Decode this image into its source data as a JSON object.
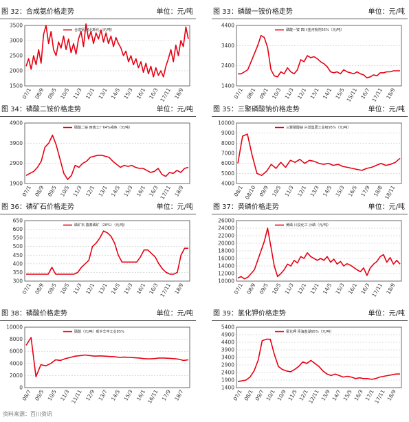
{
  "source": "资料来源：百川资讯",
  "chart_data": [
    {
      "type": "line",
      "title": "图 32：合成氨价格走势",
      "unit_label": "单位：元/吨",
      "legend": "合成氨 河北新化（元/吨）",
      "series_color": "#e60012",
      "ylim": [
        1500,
        3500
      ],
      "yticks": [
        1500,
        2000,
        2500,
        3000,
        3500
      ],
      "xticks": [
        "07/1",
        "08/9",
        "09/5",
        "10/5",
        "11/3",
        "12/1",
        "13/1",
        "14/5",
        "15/3",
        "16/1",
        "16/3",
        "17/11",
        "18/9"
      ],
      "values": [
        2150,
        2400,
        2050,
        2500,
        2200,
        2700,
        2250,
        3200,
        3500,
        2900,
        3300,
        2700,
        2500,
        2950,
        2750,
        3150,
        2700,
        3050,
        2600,
        2900,
        2550,
        3050,
        3300,
        2800,
        3550,
        3050,
        3300,
        2900,
        3250,
        3050,
        3350,
        2950,
        3250,
        2900,
        3150,
        2800,
        3100,
        2900,
        2750,
        2500,
        2650,
        2300,
        2500,
        2200,
        2400,
        2100,
        2300,
        1950,
        2250,
        1900,
        2150,
        1800,
        2100,
        1850,
        2000,
        1800,
        2150,
        2400,
        2700,
        2300,
        2850,
        2500,
        3000,
        2800,
        3450,
        3050
      ]
    },
    {
      "type": "line",
      "title": "图 33：磷酸一铵价格走势",
      "unit_label": "单位：元/吨",
      "legend": "磷酸一铵 四川金河粉剂55%（元/吨）",
      "series_color": "#e60012",
      "ylim": [
        1400,
        4400
      ],
      "yticks": [
        1400,
        2400,
        3400,
        4400
      ],
      "xticks": [
        "07/1",
        "08/1",
        "09/1",
        "10/3",
        "11/3",
        "12/1",
        "13/1",
        "14/1",
        "15/5",
        "15/11",
        "16/7",
        "17/11",
        "18/9"
      ],
      "values": [
        2000,
        2000,
        2100,
        2200,
        2600,
        3000,
        3400,
        3900,
        3800,
        3300,
        2200,
        1900,
        1850,
        2100,
        2000,
        2300,
        2100,
        2000,
        2200,
        2700,
        2600,
        2900,
        2800,
        2850,
        2750,
        2600,
        2500,
        2350,
        2100,
        2050,
        2100,
        2000,
        2200,
        2100,
        2050,
        2000,
        2100,
        2000,
        1950,
        1800,
        1850,
        1950,
        1900,
        2050,
        2050,
        2100,
        2100,
        2150,
        2150,
        2150
      ]
    },
    {
      "type": "line",
      "title": "图 34：磷酸二铵价格走势",
      "unit_label": "单位：元/吨",
      "legend": "磷酸二铵 西南工厂64%褐色（元/吨）",
      "series_color": "#e60012",
      "ylim": [
        1900,
        4900
      ],
      "yticks": [
        1900,
        2900,
        3900,
        4900
      ],
      "xticks": [
        "07/1",
        "08/9",
        "09/5",
        "10/5",
        "11/3",
        "12/1",
        "13/1",
        "14/5",
        "15/3",
        "16/1",
        "16/3",
        "17/11",
        "18/9"
      ],
      "values": [
        2300,
        2400,
        2500,
        2700,
        3000,
        3700,
        3900,
        4300,
        3800,
        3100,
        2400,
        2100,
        2300,
        2800,
        2700,
        2900,
        3000,
        3200,
        3250,
        3300,
        3300,
        3250,
        3200,
        3000,
        2850,
        2700,
        2800,
        2750,
        2800,
        2700,
        2650,
        2650,
        2550,
        2450,
        2500,
        2650,
        2350,
        2250,
        2450,
        2400,
        2550,
        2450,
        2650,
        2700
      ]
    },
    {
      "type": "line",
      "title": "图 35：三聚磷酸钠价格走势",
      "unit_label": "单位：元/吨",
      "legend": "三聚磷酸钠 兴发集团工业级95%（元/吨）",
      "series_color": "#e60012",
      "ylim": [
        4000,
        10000
      ],
      "yticks": [
        4000,
        5000,
        6000,
        7000,
        8000,
        9000,
        10000
      ],
      "xticks": [
        "08/1",
        "08/10",
        "09/9",
        "10/5",
        "11/3",
        "12/1",
        "13/3",
        "14/5",
        "15/3",
        "16/5",
        "17/9",
        "18/8",
        "18/11"
      ],
      "values": [
        6000,
        8700,
        8900,
        6800,
        5000,
        4800,
        5200,
        5900,
        5500,
        6100,
        5600,
        6300,
        6100,
        6400,
        6000,
        6300,
        6200,
        6000,
        5900,
        6000,
        5800,
        5900,
        5700,
        5600,
        5500,
        5400,
        5300,
        5500,
        5600,
        5800,
        6000,
        5800,
        5900,
        6100,
        6500
      ]
    },
    {
      "type": "line",
      "title": "图 36：磷矿石价格走势",
      "unit_label": "单位：元/吨",
      "legend": "磷矿石 鑫泰磷矿（28%）（元/吨）",
      "series_color": "#e60012",
      "ylim": [
        300,
        650
      ],
      "yticks": [
        300,
        350,
        400,
        450,
        500,
        550,
        600,
        650
      ],
      "xticks": [
        "07/1",
        "08/9",
        "09/5",
        "10/5",
        "11/3",
        "12/1",
        "13/1",
        "14/5",
        "15/3",
        "16/1",
        "16/3",
        "17/11",
        "18/9"
      ],
      "values": [
        340,
        340,
        340,
        340,
        340,
        340,
        340,
        380,
        340,
        340,
        340,
        340,
        340,
        340,
        350,
        380,
        400,
        420,
        500,
        520,
        550,
        590,
        580,
        560,
        520,
        450,
        410,
        410,
        410,
        410,
        410,
        440,
        480,
        480,
        460,
        440,
        400,
        370,
        350,
        340,
        340,
        350,
        450,
        490,
        490
      ]
    },
    {
      "type": "line",
      "title": "图 37：黄磷价格走势",
      "unit_label": "单位：元/吨",
      "legend": "黄磷 川投化工 沙磷（元/吨）",
      "series_color": "#e60012",
      "ylim": [
        10000,
        26000
      ],
      "yticks": [
        10000,
        12000,
        14000,
        16000,
        18000,
        20000,
        22000,
        24000,
        26000
      ],
      "xticks": [
        "07/1",
        "08/9",
        "09/5",
        "10/5",
        "11/3",
        "12/1",
        "13/1",
        "14/5",
        "15/3",
        "16/1",
        "16/3",
        "17/11",
        "18/9"
      ],
      "values": [
        10800,
        11200,
        10600,
        11000,
        12000,
        13000,
        15500,
        18000,
        20500,
        24000,
        19000,
        14000,
        11200,
        12000,
        13000,
        14500,
        14000,
        15500,
        14800,
        16500,
        16000,
        17500,
        16500,
        16000,
        15500,
        16000,
        15500,
        16500,
        15000,
        15800,
        14500,
        15200,
        14000,
        14600,
        14200,
        13600,
        13000,
        12500,
        13500,
        11500,
        13500,
        14500,
        15200,
        16500,
        17000,
        15000,
        16200,
        14500,
        15500,
        14500
      ]
    },
    {
      "type": "line",
      "title": "图 38：磷酸价格走势",
      "unit_label": "单位：元/吨",
      "legend": "磷酸（元/吨）新乡华丰工业85%",
      "series_color": "#e60012",
      "ylim": [
        0,
        10000
      ],
      "yticks": [
        0,
        2000,
        4000,
        6000,
        8000,
        10000
      ],
      "xticks": [
        "08/7",
        "09/5",
        "10/5",
        "11/3",
        "11/11",
        "12/9",
        "13/7",
        "14/5",
        "15/3",
        "16/1",
        "16/11",
        "17/9",
        "18/7"
      ],
      "values": [
        7000,
        8300,
        1800,
        3800,
        3600,
        4000,
        4600,
        4500,
        4800,
        5000,
        5200,
        5300,
        5400,
        5300,
        5200,
        5250,
        5200,
        5150,
        5100,
        5000,
        5050,
        5000,
        4950,
        4900,
        4800,
        4750,
        4800,
        4900,
        4900,
        4850,
        4800,
        4700,
        4500,
        4600
      ]
    },
    {
      "type": "line",
      "title": "图 39：氯化钾价格走势",
      "unit_label": "单位：元/吨",
      "legend": "氯化钾 青海盐湖95%（元/吨）",
      "series_color": "#e60012",
      "ylim": [
        1400,
        5400
      ],
      "yticks": [
        1400,
        1900,
        2400,
        2900,
        3400,
        3900,
        4400,
        4900,
        5400
      ],
      "xticks": [
        "07/1",
        "08/1",
        "09/7",
        "10/1",
        "10/9",
        "11/5",
        "12/1",
        "12/11",
        "13/9",
        "14/7",
        "15/5",
        "16/3",
        "17/1",
        "17/11",
        "18/9"
      ],
      "values": [
        1800,
        1850,
        1900,
        2100,
        2500,
        3200,
        4500,
        4600,
        4600,
        3600,
        2800,
        2600,
        2500,
        2450,
        2600,
        2800,
        3100,
        3000,
        3200,
        3000,
        2800,
        2500,
        2300,
        2200,
        2300,
        2200,
        2100,
        2150,
        2100,
        2000,
        2050,
        2000,
        2000,
        1950,
        2000,
        2100,
        2150,
        2200,
        2250,
        2300,
        2300
      ]
    }
  ]
}
